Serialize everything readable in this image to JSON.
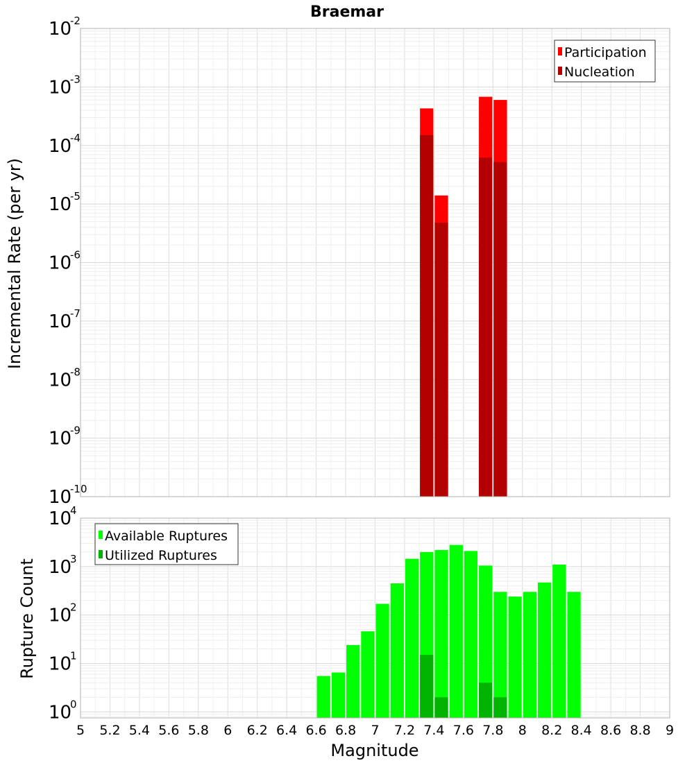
{
  "chart_data": [
    {
      "type": "bar",
      "title": "Braemar",
      "ylabel": "Incremental Rate (per yr)",
      "xlabel": "",
      "y_scale": "log",
      "ylim": [
        1e-10,
        0.01
      ],
      "xlim": [
        5,
        9
      ],
      "bin_width": 0.1,
      "legend_position": "top-right",
      "series": [
        {
          "name": "Participation",
          "color": "#ff0000",
          "points": [
            {
              "x": 7.35,
              "y": 0.00043
            },
            {
              "x": 7.45,
              "y": 1.4e-05
            },
            {
              "x": 7.75,
              "y": 0.00068
            },
            {
              "x": 7.85,
              "y": 0.0006
            }
          ]
        },
        {
          "name": "Nucleation",
          "color": "#b30000",
          "points": [
            {
              "x": 7.35,
              "y": 0.00015
            },
            {
              "x": 7.45,
              "y": 4.8e-06
            },
            {
              "x": 7.75,
              "y": 6.2e-05
            },
            {
              "x": 7.85,
              "y": 5.2e-05
            }
          ]
        }
      ]
    },
    {
      "type": "bar",
      "title": "",
      "ylabel": "Rupture Count",
      "xlabel": "Magnitude",
      "y_scale": "log",
      "ylim": [
        0.75,
        10000
      ],
      "xlim": [
        5,
        9
      ],
      "bin_width": 0.1,
      "legend_position": "top-left",
      "x_ticks": [
        "5",
        "5.2",
        "5.4",
        "5.6",
        "5.8",
        "6",
        "6.2",
        "6.4",
        "6.6",
        "6.8",
        "7",
        "7.2",
        "7.4",
        "7.6",
        "7.8",
        "8",
        "8.2",
        "8.4",
        "8.6",
        "8.8",
        "9"
      ],
      "series": [
        {
          "name": "Available Ruptures",
          "color": "#00ff00",
          "points": [
            {
              "x": 6.65,
              "y": 5.5
            },
            {
              "x": 6.75,
              "y": 6.5
            },
            {
              "x": 6.85,
              "y": 24
            },
            {
              "x": 6.95,
              "y": 46
            },
            {
              "x": 7.05,
              "y": 170
            },
            {
              "x": 7.15,
              "y": 450
            },
            {
              "x": 7.25,
              "y": 1450
            },
            {
              "x": 7.35,
              "y": 2000
            },
            {
              "x": 7.45,
              "y": 2200
            },
            {
              "x": 7.55,
              "y": 2800
            },
            {
              "x": 7.65,
              "y": 2100
            },
            {
              "x": 7.75,
              "y": 1050
            },
            {
              "x": 7.85,
              "y": 300
            },
            {
              "x": 7.95,
              "y": 240
            },
            {
              "x": 8.05,
              "y": 300
            },
            {
              "x": 8.15,
              "y": 470
            },
            {
              "x": 8.25,
              "y": 1100
            },
            {
              "x": 8.35,
              "y": 300
            }
          ]
        },
        {
          "name": "Utilized Ruptures",
          "color": "#00b300",
          "points": [
            {
              "x": 7.35,
              "y": 15
            },
            {
              "x": 7.45,
              "y": 2
            },
            {
              "x": 7.75,
              "y": 4
            },
            {
              "x": 7.85,
              "y": 2
            }
          ]
        }
      ]
    }
  ],
  "colors": {
    "grid": "#e6e6e6",
    "frame": "#b0b0b0"
  }
}
